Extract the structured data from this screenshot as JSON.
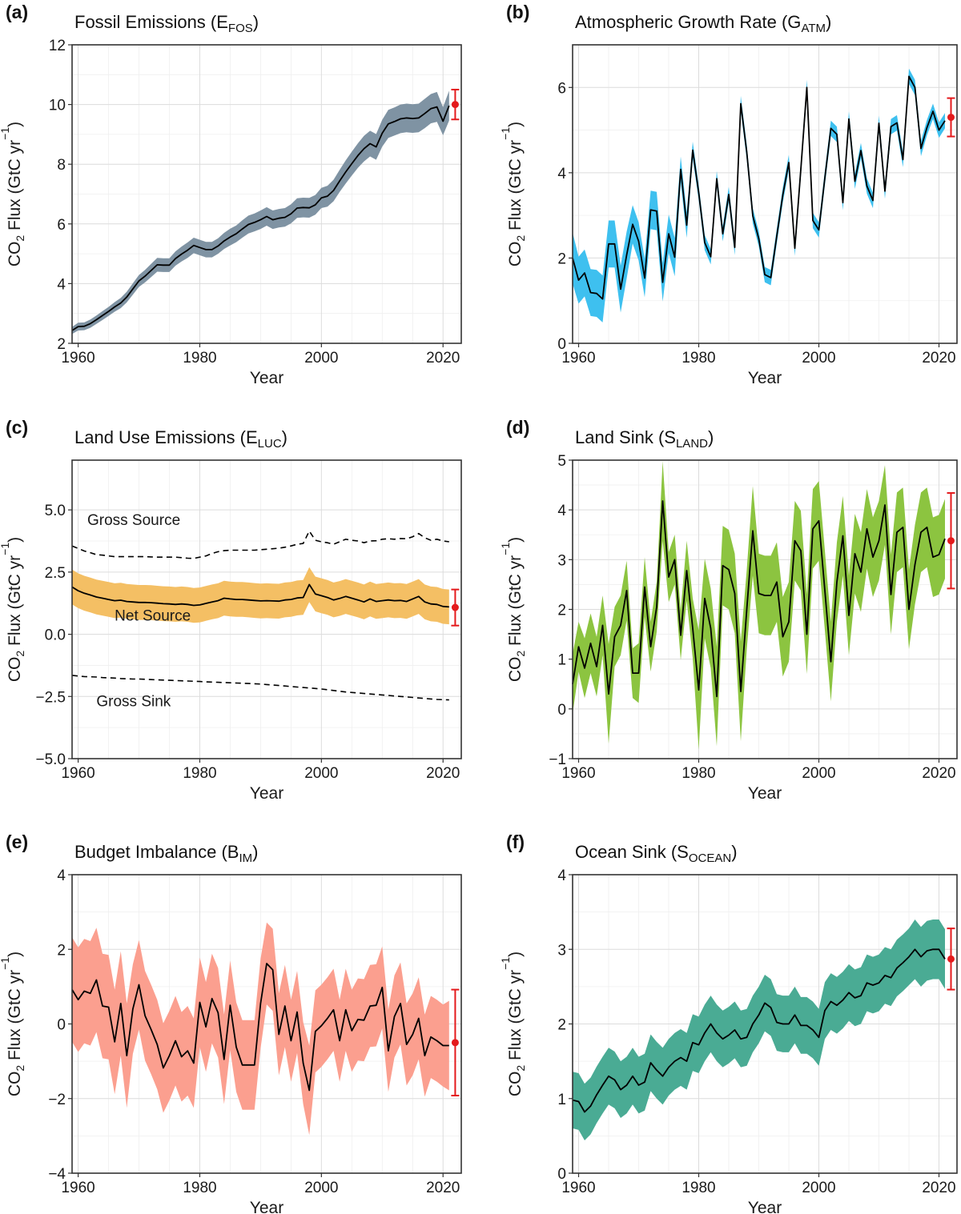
{
  "chart_data": [
    {
      "id": "a",
      "letter": "(a)",
      "title_main": "Fossil Emissions (E",
      "title_sub": "FOS",
      "title_end": ")",
      "type": "line",
      "xlabel": "Year",
      "ylabel_parts": [
        "CO",
        "2",
        " Flux (GtC yr",
        "−1",
        ")"
      ],
      "xlim": [
        1959,
        2023
      ],
      "ylim": [
        2,
        12
      ],
      "xticks": [
        1960,
        1980,
        2000,
        2020
      ],
      "yticks": [
        2,
        4,
        6,
        8,
        10,
        12
      ],
      "ytick_labels": [
        "2",
        "4",
        "6",
        "8",
        "10",
        "12"
      ],
      "band_color": "#7f93a3",
      "x_start": 1959,
      "values": [
        2.43,
        2.56,
        2.57,
        2.66,
        2.79,
        2.93,
        3.07,
        3.22,
        3.35,
        3.55,
        3.82,
        4.09,
        4.25,
        4.44,
        4.63,
        4.62,
        4.62,
        4.84,
        4.99,
        5.12,
        5.28,
        5.21,
        5.14,
        5.14,
        5.26,
        5.43,
        5.56,
        5.67,
        5.83,
        5.98,
        6.05,
        6.14,
        6.25,
        6.14,
        6.19,
        6.22,
        6.34,
        6.53,
        6.55,
        6.54,
        6.64,
        6.87,
        6.93,
        7.12,
        7.44,
        7.74,
        8.02,
        8.29,
        8.52,
        8.69,
        8.58,
        9.04,
        9.35,
        9.43,
        9.52,
        9.55,
        9.53,
        9.55,
        9.7,
        9.86,
        9.92,
        9.44,
        9.96
      ],
      "band": [
        0.12,
        0.13,
        0.13,
        0.14,
        0.14,
        0.15,
        0.15,
        0.16,
        0.17,
        0.18,
        0.19,
        0.2,
        0.21,
        0.22,
        0.23,
        0.23,
        0.23,
        0.24,
        0.25,
        0.26,
        0.26,
        0.26,
        0.26,
        0.26,
        0.26,
        0.27,
        0.28,
        0.28,
        0.29,
        0.3,
        0.3,
        0.31,
        0.31,
        0.31,
        0.31,
        0.31,
        0.32,
        0.33,
        0.33,
        0.33,
        0.33,
        0.34,
        0.35,
        0.36,
        0.37,
        0.39,
        0.4,
        0.41,
        0.43,
        0.43,
        0.43,
        0.45,
        0.47,
        0.47,
        0.48,
        0.48,
        0.48,
        0.48,
        0.49,
        0.49,
        0.5,
        0.47,
        0.5
      ],
      "projection": {
        "x": 2022,
        "value": 10.0,
        "low": 9.5,
        "high": 10.5
      }
    },
    {
      "id": "b",
      "letter": "(b)",
      "title_main": "Atmospheric Growth Rate (G",
      "title_sub": "ATM",
      "title_end": ")",
      "type": "line",
      "xlabel": "Year",
      "ylabel_parts": [
        "CO",
        "2",
        " Flux (GtC yr",
        "−1",
        ")"
      ],
      "xlim": [
        1959,
        2023
      ],
      "ylim": [
        0,
        7
      ],
      "xticks": [
        1960,
        1980,
        2000,
        2020
      ],
      "yticks": [
        0,
        2,
        4,
        6
      ],
      "ytick_labels": [
        "0",
        "2",
        "4",
        "6"
      ],
      "band_color": "#3ec0ef",
      "x_start": 1959,
      "values": [
        2.0,
        1.48,
        1.65,
        1.19,
        1.17,
        1.04,
        2.33,
        2.33,
        1.27,
        2.07,
        2.79,
        2.39,
        1.53,
        3.13,
        3.1,
        1.43,
        2.57,
        2.02,
        4.08,
        2.77,
        4.53,
        3.53,
        2.36,
        2.03,
        3.86,
        2.57,
        3.49,
        2.25,
        5.62,
        4.48,
        2.99,
        2.45,
        1.61,
        1.54,
        2.52,
        3.48,
        4.24,
        2.23,
        4.08,
        6.0,
        2.88,
        2.66,
        3.88,
        5.04,
        4.9,
        3.3,
        5.26,
        3.8,
        4.52,
        3.69,
        3.35,
        5.16,
        3.57,
        5.08,
        5.17,
        4.31,
        6.26,
        6.0,
        4.57,
        5.06,
        5.44,
        5.0,
        5.22
      ],
      "band": [
        0.6,
        0.55,
        0.55,
        0.55,
        0.55,
        0.55,
        0.55,
        0.55,
        0.55,
        0.55,
        0.45,
        0.45,
        0.45,
        0.45,
        0.45,
        0.45,
        0.45,
        0.45,
        0.3,
        0.3,
        0.2,
        0.18,
        0.18,
        0.18,
        0.18,
        0.18,
        0.18,
        0.18,
        0.18,
        0.18,
        0.18,
        0.18,
        0.18,
        0.18,
        0.18,
        0.18,
        0.18,
        0.18,
        0.18,
        0.18,
        0.18,
        0.18,
        0.18,
        0.18,
        0.18,
        0.18,
        0.18,
        0.18,
        0.18,
        0.18,
        0.18,
        0.18,
        0.18,
        0.18,
        0.18,
        0.18,
        0.18,
        0.18,
        0.18,
        0.18,
        0.18,
        0.18,
        0.18
      ],
      "projection": {
        "x": 2022,
        "value": 5.3,
        "low": 4.85,
        "high": 5.75
      }
    },
    {
      "id": "c",
      "letter": "(c)",
      "title_main": "Land Use Emissions (E",
      "title_sub": "LUC",
      "title_end": ")",
      "type": "line",
      "xlabel": "Year",
      "ylabel_parts": [
        "CO",
        "2",
        " Flux (GtC yr",
        "−1",
        ")"
      ],
      "xlim": [
        1959,
        2023
      ],
      "ylim": [
        -5,
        7
      ],
      "xticks": [
        1960,
        1980,
        2000,
        2020
      ],
      "yticks": [
        -5,
        -2.5,
        0,
        2.5,
        5
      ],
      "ytick_labels": [
        "−5.0",
        "−2.5",
        "0.0",
        "2.5",
        "5.0"
      ],
      "band_color": "#f4bf64",
      "x_start": 1959,
      "values": [
        1.9,
        1.75,
        1.65,
        1.58,
        1.5,
        1.45,
        1.4,
        1.35,
        1.37,
        1.32,
        1.3,
        1.28,
        1.28,
        1.27,
        1.25,
        1.23,
        1.22,
        1.2,
        1.22,
        1.2,
        1.16,
        1.18,
        1.24,
        1.3,
        1.35,
        1.45,
        1.42,
        1.4,
        1.4,
        1.38,
        1.36,
        1.34,
        1.35,
        1.34,
        1.33,
        1.38,
        1.4,
        1.46,
        1.48,
        2.0,
        1.62,
        1.55,
        1.48,
        1.38,
        1.44,
        1.52,
        1.45,
        1.38,
        1.3,
        1.42,
        1.32,
        1.35,
        1.38,
        1.35,
        1.36,
        1.32,
        1.42,
        1.52,
        1.3,
        1.22,
        1.2,
        1.12,
        1.1
      ],
      "band": [
        0.7,
        0.7,
        0.7,
        0.7,
        0.7,
        0.7,
        0.7,
        0.7,
        0.7,
        0.7,
        0.7,
        0.7,
        0.7,
        0.7,
        0.7,
        0.7,
        0.7,
        0.7,
        0.7,
        0.7,
        0.7,
        0.7,
        0.7,
        0.7,
        0.7,
        0.7,
        0.7,
        0.7,
        0.7,
        0.7,
        0.7,
        0.7,
        0.7,
        0.7,
        0.7,
        0.7,
        0.7,
        0.7,
        0.7,
        0.7,
        0.7,
        0.7,
        0.7,
        0.7,
        0.7,
        0.7,
        0.7,
        0.7,
        0.7,
        0.7,
        0.7,
        0.7,
        0.7,
        0.7,
        0.7,
        0.7,
        0.7,
        0.7,
        0.7,
        0.7,
        0.7,
        0.7,
        0.7
      ],
      "gross_source": [
        3.55,
        3.45,
        3.35,
        3.28,
        3.2,
        3.18,
        3.15,
        3.12,
        3.12,
        3.12,
        3.12,
        3.12,
        3.12,
        3.11,
        3.1,
        3.1,
        3.1,
        3.1,
        3.08,
        3.06,
        3.05,
        3.1,
        3.15,
        3.25,
        3.32,
        3.36,
        3.38,
        3.38,
        3.38,
        3.38,
        3.38,
        3.4,
        3.42,
        3.44,
        3.46,
        3.5,
        3.55,
        3.62,
        3.65,
        4.15,
        3.78,
        3.72,
        3.68,
        3.62,
        3.72,
        3.82,
        3.78,
        3.75,
        3.68,
        3.75,
        3.76,
        3.82,
        3.84,
        3.82,
        3.85,
        3.84,
        3.92,
        4.05,
        3.88,
        3.78,
        3.82,
        3.75,
        3.72
      ],
      "gross_sink": [
        -1.65,
        -1.68,
        -1.7,
        -1.71,
        -1.72,
        -1.74,
        -1.75,
        -1.76,
        -1.78,
        -1.79,
        -1.8,
        -1.8,
        -1.81,
        -1.82,
        -1.83,
        -1.84,
        -1.85,
        -1.86,
        -1.87,
        -1.88,
        -1.89,
        -1.9,
        -1.91,
        -1.92,
        -1.93,
        -1.94,
        -1.95,
        -1.96,
        -1.97,
        -1.98,
        -1.99,
        -2.0,
        -2.02,
        -2.04,
        -2.06,
        -2.08,
        -2.1,
        -2.12,
        -2.14,
        -2.16,
        -2.18,
        -2.2,
        -2.23,
        -2.26,
        -2.29,
        -2.32,
        -2.34,
        -2.36,
        -2.38,
        -2.4,
        -2.42,
        -2.44,
        -2.46,
        -2.48,
        -2.5,
        -2.52,
        -2.54,
        -2.56,
        -2.58,
        -2.6,
        -2.62,
        -2.63,
        -2.64
      ],
      "projection": {
        "x": 2022,
        "value": 1.08,
        "low": 0.35,
        "high": 1.8
      },
      "annotations": [
        {
          "text": "Gross Source",
          "x": 1961.5,
          "y": 4.4
        },
        {
          "text": "Net Source",
          "x": 1966,
          "y": 0.55
        },
        {
          "text": "Gross Sink",
          "x": 1963,
          "y": -2.9
        }
      ]
    },
    {
      "id": "d",
      "letter": "(d)",
      "title_main": "Land Sink (S",
      "title_sub": "LAND",
      "title_end": ")",
      "type": "line",
      "xlabel": "Year",
      "ylabel_parts": [
        "CO",
        "2",
        " Flux (GtC yr",
        "−1",
        ")"
      ],
      "xlim": [
        1959,
        2023
      ],
      "ylim": [
        -1,
        5
      ],
      "xticks": [
        1960,
        1980,
        2000,
        2020
      ],
      "yticks": [
        -1,
        0,
        1,
        2,
        3,
        4,
        5
      ],
      "ytick_labels": [
        "−1",
        "0",
        "1",
        "2",
        "3",
        "4",
        "5"
      ],
      "band_color": "#8cc440",
      "x_start": 1959,
      "values": [
        0.5,
        1.25,
        0.82,
        1.32,
        0.85,
        1.68,
        0.3,
        1.45,
        1.68,
        2.38,
        0.72,
        0.72,
        2.45,
        1.25,
        2.05,
        4.18,
        2.65,
        3.0,
        1.48,
        2.78,
        1.62,
        0.38,
        2.22,
        1.62,
        0.25,
        2.88,
        2.8,
        2.32,
        0.35,
        2.0,
        3.58,
        2.32,
        2.28,
        2.28,
        2.55,
        1.45,
        1.75,
        3.38,
        3.18,
        1.5,
        3.62,
        3.78,
        2.38,
        0.95,
        2.55,
        3.48,
        1.88,
        3.12,
        2.75,
        3.62,
        3.05,
        3.38,
        4.1,
        2.3,
        3.55,
        3.65,
        2.0,
        2.9,
        3.55,
        3.65,
        3.05,
        3.1,
        3.42
      ],
      "band": [
        0.6,
        0.5,
        0.6,
        0.6,
        0.6,
        0.6,
        1.0,
        0.6,
        0.6,
        0.6,
        0.5,
        0.6,
        0.6,
        0.5,
        0.5,
        0.8,
        0.5,
        0.5,
        0.5,
        0.6,
        0.6,
        1.2,
        0.8,
        0.8,
        1.0,
        0.8,
        0.8,
        0.8,
        1.0,
        0.8,
        0.9,
        0.8,
        0.8,
        0.8,
        0.8,
        0.8,
        0.8,
        0.8,
        0.8,
        0.8,
        0.8,
        0.8,
        0.8,
        0.8,
        0.8,
        0.8,
        0.8,
        0.8,
        0.8,
        0.8,
        0.8,
        0.8,
        0.8,
        0.8,
        0.8,
        0.8,
        0.8,
        0.8,
        0.8,
        0.8,
        0.8,
        0.8,
        0.8
      ],
      "projection": {
        "x": 2022,
        "value": 3.38,
        "low": 2.42,
        "high": 4.34
      }
    },
    {
      "id": "e",
      "letter": "(e)",
      "title_main": "Budget Imbalance (B",
      "title_sub": "IM",
      "title_end": ")",
      "type": "line",
      "xlabel": "Year",
      "ylabel_parts": [
        "CO",
        "2",
        " Flux (GtC yr",
        "−1",
        ")"
      ],
      "xlim": [
        1959,
        2023
      ],
      "ylim": [
        -4,
        4
      ],
      "xticks": [
        1960,
        1980,
        2000,
        2020
      ],
      "yticks": [
        -4,
        -2,
        0,
        2,
        4
      ],
      "ytick_labels": [
        "−4",
        "−2",
        "0",
        "2",
        "4"
      ],
      "band_color": "#fb9f8f",
      "x_start": 1959,
      "values": [
        0.92,
        0.65,
        0.88,
        0.82,
        1.18,
        0.48,
        0.45,
        -0.48,
        0.55,
        -0.85,
        0.4,
        1.05,
        0.22,
        -0.15,
        -0.55,
        -1.18,
        -0.85,
        -0.45,
        -0.88,
        -0.72,
        -1.05,
        0.58,
        -0.08,
        0.68,
        0.3,
        -0.95,
        0.5,
        -0.62,
        -1.1,
        -1.1,
        -1.1,
        0.55,
        1.62,
        1.45,
        -0.28,
        0.48,
        -0.45,
        0.32,
        -1.05,
        -1.78,
        -0.2,
        -0.05,
        0.15,
        0.38,
        -0.45,
        0.38,
        -0.18,
        0.12,
        0.1,
        0.48,
        0.5,
        0.98,
        -0.72,
        0.2,
        0.55,
        -0.55,
        -0.28,
        0.15,
        -0.85,
        -0.35,
        -0.45,
        -0.58,
        -0.58
      ],
      "band": [
        1.4,
        1.4,
        1.4,
        1.4,
        1.4,
        1.4,
        1.4,
        1.4,
        1.4,
        1.4,
        1.2,
        1.2,
        1.2,
        1.2,
        1.2,
        1.2,
        1.2,
        1.2,
        1.2,
        1.2,
        1.2,
        1.2,
        1.2,
        1.2,
        1.2,
        1.2,
        1.2,
        1.2,
        1.2,
        1.2,
        1.2,
        1.2,
        1.1,
        1.1,
        1.1,
        1.1,
        1.1,
        1.1,
        1.1,
        1.2,
        1.1,
        1.1,
        1.1,
        1.1,
        1.1,
        1.1,
        1.1,
        1.1,
        1.1,
        1.1,
        1.1,
        1.1,
        1.1,
        1.1,
        1.1,
        1.1,
        1.1,
        1.1,
        1.1,
        1.1,
        1.1,
        1.1,
        1.2
      ],
      "projection": {
        "x": 2022,
        "value": -0.5,
        "low": -1.92,
        "high": 0.92
      }
    },
    {
      "id": "f",
      "letter": "(f)",
      "title_main": "Ocean Sink (S",
      "title_sub": "OCEAN",
      "title_end": ")",
      "type": "line",
      "xlabel": "Year",
      "ylabel_parts": [
        "CO",
        "2",
        " Flux (GtC yr",
        "−1",
        ")"
      ],
      "xlim": [
        1959,
        2023
      ],
      "ylim": [
        0,
        4
      ],
      "xticks": [
        1960,
        1980,
        2000,
        2020
      ],
      "yticks": [
        0,
        1,
        2,
        3,
        4
      ],
      "ytick_labels": [
        "0",
        "1",
        "2",
        "3",
        "4"
      ],
      "band_color": "#4aab94",
      "x_start": 1959,
      "values": [
        0.98,
        0.96,
        0.82,
        0.9,
        1.05,
        1.18,
        1.3,
        1.25,
        1.12,
        1.18,
        1.3,
        1.18,
        1.22,
        1.48,
        1.38,
        1.3,
        1.42,
        1.5,
        1.55,
        1.5,
        1.75,
        1.72,
        1.88,
        2.0,
        1.88,
        1.8,
        1.85,
        1.92,
        1.8,
        1.82,
        2.0,
        2.12,
        2.28,
        2.22,
        2.02,
        2.0,
        2.0,
        2.12,
        1.98,
        1.98,
        1.92,
        1.82,
        2.18,
        2.3,
        2.25,
        2.32,
        2.42,
        2.35,
        2.38,
        2.55,
        2.52,
        2.55,
        2.65,
        2.62,
        2.75,
        2.82,
        2.9,
        3.0,
        2.9,
        2.98,
        3.0,
        3.0,
        2.87
      ],
      "band": [
        0.38,
        0.38,
        0.38,
        0.38,
        0.38,
        0.38,
        0.38,
        0.38,
        0.38,
        0.38,
        0.38,
        0.38,
        0.38,
        0.38,
        0.38,
        0.38,
        0.38,
        0.38,
        0.38,
        0.38,
        0.38,
        0.38,
        0.38,
        0.38,
        0.38,
        0.38,
        0.38,
        0.38,
        0.38,
        0.38,
        0.38,
        0.38,
        0.38,
        0.38,
        0.38,
        0.38,
        0.38,
        0.38,
        0.38,
        0.38,
        0.38,
        0.38,
        0.38,
        0.38,
        0.38,
        0.38,
        0.38,
        0.38,
        0.38,
        0.38,
        0.38,
        0.38,
        0.38,
        0.38,
        0.38,
        0.38,
        0.38,
        0.4,
        0.4,
        0.4,
        0.4,
        0.4,
        0.4
      ],
      "projection": {
        "x": 2022,
        "value": 2.87,
        "low": 2.46,
        "high": 3.28
      }
    }
  ],
  "colors": {
    "mean": "#000000",
    "projection": "#e41a1c"
  }
}
